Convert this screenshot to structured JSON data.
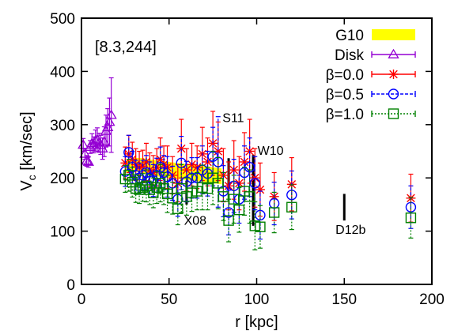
{
  "chart_data": {
    "type": "scatter",
    "title": "",
    "params_label": "[8.3,244]",
    "xlabel": "r [kpc]",
    "ylabel_main": "V",
    "ylabel_sub": "c",
    "ylabel_rest": " [km/sec]",
    "xlim": [
      0,
      200
    ],
    "ylim": [
      0,
      500
    ],
    "xticks": [
      0,
      50,
      100,
      150,
      200
    ],
    "yticks": [
      0,
      100,
      200,
      300,
      400,
      500
    ],
    "grid": false,
    "legend_position": "top-right",
    "colors": {
      "G10": "#ffff00",
      "Disk": "#9400d3",
      "b00": "#ff0000",
      "b05": "#0000ff",
      "b10": "#008000",
      "annot": "#000000"
    },
    "legend": [
      {
        "key": "G10",
        "label": "G10",
        "kind": "band"
      },
      {
        "key": "Disk",
        "label": "Disk",
        "kind": "triangle"
      },
      {
        "key": "b00",
        "label": "β=0.0",
        "kind": "star"
      },
      {
        "key": "b05",
        "label": "β=0.5",
        "kind": "circle"
      },
      {
        "key": "b10",
        "label": "β=1.0",
        "kind": "square"
      }
    ],
    "g10_band": {
      "x": [
        25,
        30,
        35,
        40,
        45,
        50,
        55,
        60,
        65,
        70,
        75,
        80
      ],
      "upper": [
        232,
        238,
        237,
        234,
        232,
        230,
        228,
        226,
        224,
        222,
        220,
        218
      ],
      "lower": [
        210,
        213,
        208,
        205,
        202,
        200,
        198,
        196,
        194,
        192,
        190,
        188
      ]
    },
    "disk": {
      "x": [
        1,
        2,
        3,
        4,
        5,
        6,
        7,
        8,
        9,
        10,
        11,
        12,
        13,
        14,
        15,
        16,
        17
      ],
      "y": [
        262,
        245,
        232,
        230,
        258,
        265,
        262,
        270,
        272,
        266,
        262,
        255,
        268,
        288,
        295,
        305,
        318
      ],
      "err": [
        12,
        10,
        10,
        10,
        12,
        18,
        15,
        20,
        22,
        18,
        18,
        20,
        28,
        30,
        35,
        45,
        70
      ]
    },
    "series": [
      {
        "key": "b00",
        "name": "β=0.0",
        "marker": "star",
        "x": [
          25,
          27,
          29,
          31,
          33,
          35,
          37,
          39,
          41,
          43,
          45,
          47,
          49,
          52,
          55,
          57,
          60,
          63,
          66,
          69,
          72,
          75,
          78,
          81,
          84,
          87,
          90,
          93,
          96,
          99,
          102,
          110,
          120,
          188
        ],
        "y": [
          228,
          245,
          235,
          225,
          220,
          222,
          230,
          215,
          210,
          220,
          235,
          225,
          220,
          205,
          190,
          255,
          215,
          225,
          220,
          245,
          230,
          265,
          250,
          205,
          185,
          215,
          190,
          230,
          250,
          200,
          178,
          165,
          188,
          162
        ],
        "err": [
          30,
          35,
          32,
          30,
          30,
          30,
          35,
          32,
          32,
          35,
          40,
          35,
          40,
          35,
          35,
          55,
          40,
          40,
          40,
          50,
          45,
          60,
          55,
          50,
          45,
          55,
          50,
          55,
          60,
          55,
          50,
          45,
          50,
          45
        ]
      },
      {
        "key": "b05",
        "name": "β=0.5",
        "marker": "circle",
        "x": [
          25,
          27,
          29,
          31,
          33,
          35,
          37,
          39,
          41,
          43,
          45,
          47,
          49,
          52,
          55,
          57,
          60,
          63,
          66,
          69,
          72,
          75,
          78,
          81,
          84,
          87,
          90,
          93,
          96,
          99,
          102,
          110,
          120,
          188
        ],
        "y": [
          212,
          248,
          220,
          205,
          200,
          205,
          210,
          200,
          195,
          205,
          220,
          210,
          202,
          190,
          160,
          228,
          193,
          200,
          200,
          215,
          208,
          240,
          230,
          175,
          135,
          185,
          160,
          210,
          220,
          190,
          130,
          152,
          168,
          145
        ],
        "err": [
          28,
          32,
          30,
          28,
          28,
          28,
          32,
          30,
          30,
          32,
          38,
          32,
          38,
          32,
          32,
          50,
          38,
          38,
          38,
          45,
          42,
          55,
          85,
          48,
          42,
          50,
          45,
          50,
          55,
          50,
          45,
          40,
          45,
          40
        ]
      },
      {
        "key": "b10",
        "name": "β=1.0",
        "marker": "square",
        "x": [
          25,
          27,
          29,
          31,
          33,
          35,
          37,
          39,
          41,
          43,
          45,
          47,
          49,
          52,
          55,
          57,
          60,
          63,
          66,
          69,
          72,
          75,
          78,
          81,
          84,
          87,
          90,
          93,
          96,
          99,
          102,
          110,
          120,
          188
        ],
        "y": [
          198,
          205,
          192,
          180,
          178,
          182,
          185,
          178,
          172,
          182,
          190,
          180,
          170,
          162,
          142,
          180,
          165,
          172,
          175,
          182,
          180,
          200,
          190,
          165,
          120,
          160,
          140,
          175,
          165,
          110,
          108,
          135,
          145,
          125
        ],
        "err": [
          25,
          30,
          28,
          26,
          26,
          26,
          30,
          28,
          28,
          30,
          35,
          30,
          35,
          30,
          30,
          45,
          35,
          35,
          35,
          42,
          40,
          50,
          48,
          45,
          40,
          45,
          42,
          45,
          50,
          45,
          40,
          38,
          42,
          38
        ]
      }
    ],
    "annotations": [
      {
        "label": "S11",
        "x": 80.5,
        "y": 305,
        "bar_x": 84,
        "bar_lo": 180,
        "bar_hi": 237
      },
      {
        "label": "W10",
        "x": 100.5,
        "y": 243,
        "bar_x": 98,
        "bar_lo": 110,
        "bar_hi": 243
      },
      {
        "label": "X08",
        "x": 58.5,
        "y": 112,
        "bar_x": 60,
        "bar_lo": 150,
        "bar_hi": 195
      },
      {
        "label": "D12b",
        "x": 145,
        "y": 95,
        "bar_x": 150,
        "bar_lo": 120,
        "bar_hi": 170
      }
    ]
  }
}
